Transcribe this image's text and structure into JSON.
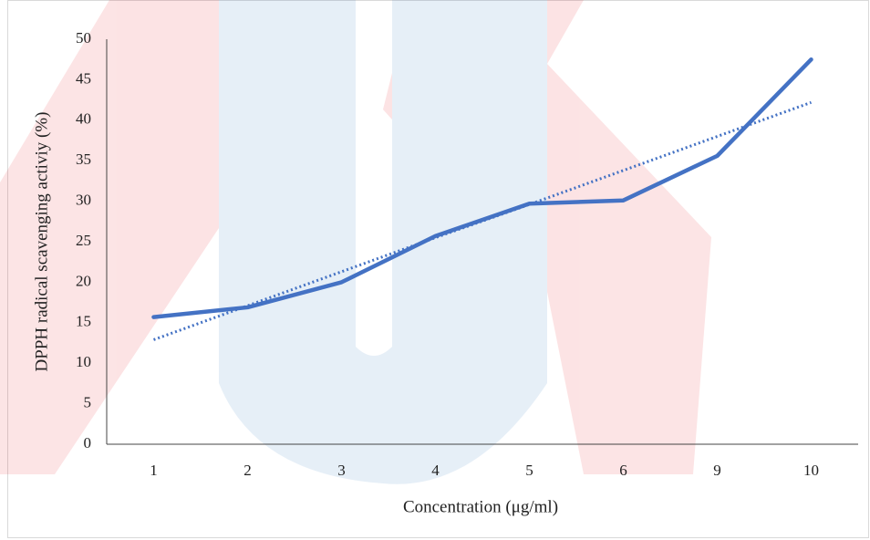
{
  "chart_data": {
    "type": "line",
    "x_label": "Concentration (μg/ml)",
    "y_label": "DPPH radical scavenging activiy (%)",
    "categories": [
      "1",
      "2",
      "3",
      "4",
      "5",
      "6",
      "9",
      "10"
    ],
    "series": [
      {
        "color": "#4472c4",
        "values": [
          15.7,
          16.9,
          20,
          25.7,
          29.7,
          30.1,
          35.6,
          47.5
        ]
      }
    ],
    "trendline": {
      "color": "#4472c4",
      "style": "dotted",
      "values": [
        12.9,
        17.1,
        21.3,
        25.5,
        29.6,
        33.8,
        38.0,
        42.2
      ]
    },
    "ylim": [
      0,
      50
    ],
    "yticks": [
      0,
      5,
      10,
      15,
      20,
      25,
      30,
      35,
      40,
      45,
      50
    ],
    "grid": false
  }
}
